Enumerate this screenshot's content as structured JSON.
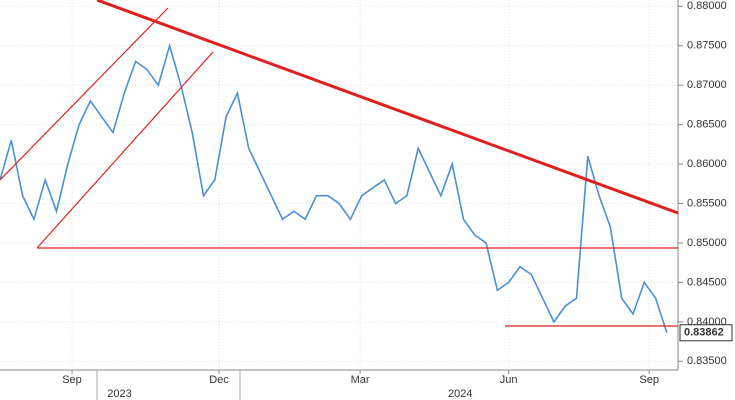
{
  "chart_data": {
    "type": "line",
    "x": [
      0,
      7,
      14,
      21,
      28,
      35,
      42,
      49,
      56,
      63,
      70,
      77,
      84,
      91,
      98,
      105,
      112,
      119,
      126,
      133,
      140,
      147,
      154,
      161,
      168,
      175,
      182,
      189,
      196,
      203,
      210,
      217,
      224,
      231,
      238,
      245,
      252,
      259,
      266,
      273,
      280,
      287,
      294,
      301,
      308,
      315,
      322,
      329,
      336,
      343,
      350,
      357,
      364,
      371,
      378,
      385,
      392,
      399,
      406,
      413
    ],
    "values": [
      0.858,
      0.863,
      0.856,
      0.853,
      0.858,
      0.854,
      0.86,
      0.865,
      0.868,
      0.866,
      0.864,
      0.869,
      0.873,
      0.872,
      0.87,
      0.875,
      0.87,
      0.864,
      0.856,
      0.858,
      0.866,
      0.869,
      0.862,
      0.859,
      0.856,
      0.853,
      0.854,
      0.853,
      0.856,
      0.856,
      0.855,
      0.853,
      0.856,
      0.857,
      0.858,
      0.855,
      0.856,
      0.862,
      0.859,
      0.856,
      0.86,
      0.853,
      0.851,
      0.85,
      0.844,
      0.845,
      0.847,
      0.846,
      0.843,
      0.84,
      0.842,
      0.843,
      0.861,
      0.856,
      0.852,
      0.843,
      0.841,
      0.845,
      0.843,
      0.83862
    ],
    "color": "#4a90d9",
    "xlim": [
      0,
      418
    ],
    "xticks": [
      {
        "value": 44.6,
        "label": "Sep"
      },
      {
        "value": 135.6,
        "label": "Dec"
      },
      {
        "value": 223,
        "label": "Mar"
      },
      {
        "value": 315,
        "label": "Jun"
      },
      {
        "value": 402,
        "label": "Sep"
      }
    ],
    "year_labels": [
      {
        "value": 74,
        "label": "2023"
      },
      {
        "value": 285,
        "label": "2024"
      }
    ],
    "ylim": [
      0.8339,
      0.8808
    ],
    "yticks": [
      {
        "value": 0.835,
        "label": "0.83500"
      },
      {
        "value": 0.84,
        "label": "0.84000"
      },
      {
        "value": 0.845,
        "label": "0.84500"
      },
      {
        "value": 0.85,
        "label": "0.85000"
      },
      {
        "value": 0.855,
        "label": "0.85500"
      },
      {
        "value": 0.86,
        "label": "0.86000"
      },
      {
        "value": 0.865,
        "label": "0.86500"
      },
      {
        "value": 0.87,
        "label": "0.87000"
      },
      {
        "value": 0.875,
        "label": "0.87500"
      },
      {
        "value": 0.88,
        "label": "0.88000"
      }
    ],
    "grid": true
  }
}
